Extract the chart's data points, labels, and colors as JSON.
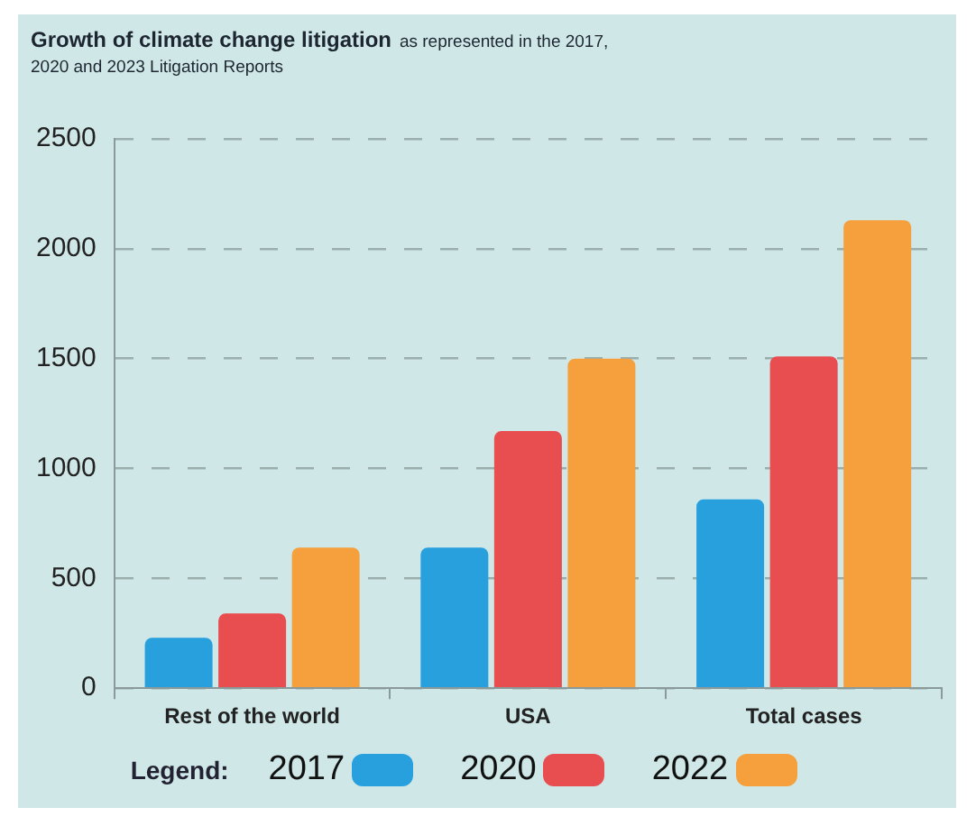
{
  "chart_data": {
    "type": "bar",
    "title": "Growth of climate change litigation",
    "subtitle": "as represented in the 2017, 2020 and 2023 Litigation Reports",
    "categories": [
      "Rest of the world",
      "USA",
      "Total cases"
    ],
    "series": [
      {
        "name": "2017",
        "color": "#29a0de",
        "values": [
          230,
          640,
          860
        ]
      },
      {
        "name": "2020",
        "color": "#e84d50",
        "values": [
          340,
          1170,
          1510
        ]
      },
      {
        "name": "2022",
        "color": "#f5a03c",
        "values": [
          640,
          1500,
          2130
        ]
      }
    ],
    "ylim": [
      0,
      2500
    ],
    "yticks": [
      0,
      500,
      1000,
      1500,
      2000,
      2500
    ],
    "grid": "y",
    "legend": "bottom",
    "legend_title": "Legend:"
  }
}
